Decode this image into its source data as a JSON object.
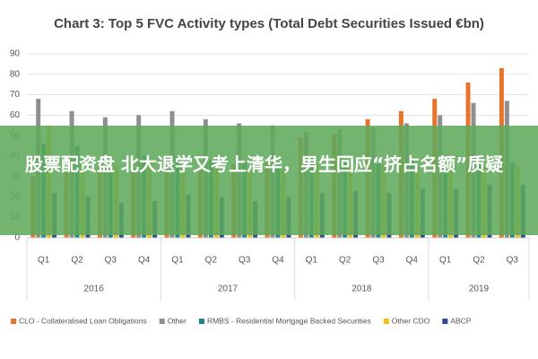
{
  "chart_data": {
    "type": "bar",
    "title": "Chart 3: Top 5 FVC Activity types (Total Debt Securities Issued €bn)",
    "categories": [
      "Q1",
      "Q2",
      "Q3",
      "Q4",
      "Q1",
      "Q2",
      "Q3",
      "Q4",
      "Q1",
      "Q2",
      "Q3",
      "Q4",
      "Q1",
      "Q2",
      "Q3"
    ],
    "years": [
      "2016",
      "2017",
      "2018",
      "2019"
    ],
    "series": [
      {
        "name": "CLO - Collateralised Loan Obligations",
        "color": "#e8732a",
        "values": [
          30,
          32,
          36,
          34,
          35,
          34,
          36,
          38,
          49,
          51,
          58,
          62,
          68,
          76,
          83
        ]
      },
      {
        "name": "Other",
        "color": "#8f8f8f",
        "values": [
          68,
          62,
          59,
          60,
          62,
          58,
          56,
          55,
          52,
          53,
          54,
          56,
          60,
          66,
          67
        ]
      },
      {
        "name": "RMBS - Residential Mortgage Backed Securities",
        "color": "#23808f",
        "values": [
          46,
          45,
          38,
          40,
          40,
          38,
          37,
          37,
          40,
          38,
          38,
          38,
          37,
          38,
          37
        ]
      },
      {
        "name": "Other CDO",
        "color": "#f0c020",
        "values": [
          55,
          38,
          35,
          37,
          35,
          35,
          33,
          34,
          36,
          35,
          36,
          35,
          35,
          35,
          35
        ]
      },
      {
        "name": "ABCP",
        "color": "#274a8c",
        "values": [
          22,
          20,
          17,
          18,
          21,
          20,
          18,
          20,
          22,
          23,
          22,
          24,
          24,
          26,
          26
        ]
      }
    ],
    "ylim": [
      0,
      90
    ],
    "yticks": [
      0,
      10,
      20,
      30,
      40,
      50,
      60,
      70,
      80,
      90
    ],
    "grid": true
  },
  "banner": {
    "text": "股票配资盘 北大退学又考上清华，男生回应“挤占名额”质疑"
  }
}
